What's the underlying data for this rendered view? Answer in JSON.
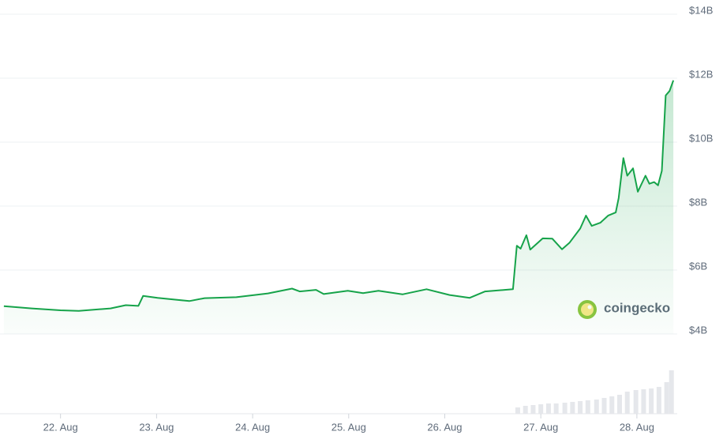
{
  "chart_data": {
    "type": "line",
    "watermark": "coingecko",
    "x": [
      21.41,
      21.7,
      22.0,
      22.19,
      22.52,
      22.68,
      22.81,
      22.86,
      23.01,
      23.34,
      23.5,
      23.83,
      24.16,
      24.41,
      24.49,
      24.66,
      24.74,
      24.99,
      25.15,
      25.31,
      25.56,
      25.81,
      26.05,
      26.26,
      26.42,
      26.71,
      26.75,
      26.79,
      26.85,
      26.89,
      27.02,
      27.12,
      27.22,
      27.3,
      27.41,
      27.47,
      27.53,
      27.62,
      27.7,
      27.78,
      27.81,
      27.86,
      27.9,
      27.96,
      28.01,
      28.09,
      28.13,
      28.18,
      28.22,
      28.26,
      28.3,
      28.34,
      28.38
    ],
    "series": [
      {
        "color": "#16a34a",
        "values": [
          4.87,
          4.8,
          4.74,
          4.72,
          4.8,
          4.9,
          4.88,
          5.19,
          5.13,
          5.03,
          5.12,
          5.15,
          5.27,
          5.42,
          5.33,
          5.38,
          5.25,
          5.35,
          5.28,
          5.35,
          5.24,
          5.4,
          5.22,
          5.13,
          5.33,
          5.4,
          6.76,
          6.67,
          7.09,
          6.64,
          6.99,
          6.98,
          6.65,
          6.86,
          7.3,
          7.7,
          7.38,
          7.48,
          7.7,
          7.8,
          8.25,
          9.5,
          8.95,
          9.18,
          8.45,
          8.95,
          8.7,
          8.75,
          8.65,
          9.1,
          11.46,
          11.6,
          11.93
        ]
      }
    ],
    "volume": {
      "color": "#e5e7eb",
      "x": [
        26.76,
        26.84,
        26.92,
        27.0,
        27.08,
        27.16,
        27.25,
        27.33,
        27.41,
        27.49,
        27.58,
        27.66,
        27.74,
        27.82,
        27.9,
        27.99,
        28.07,
        28.15,
        28.23,
        28.31,
        28.36
      ],
      "values": [
        8,
        10,
        11,
        12,
        13,
        13,
        14,
        15,
        16,
        17,
        18,
        20,
        22,
        24,
        28,
        30,
        31,
        32,
        34,
        40,
        55
      ],
      "ylim": [
        0,
        100
      ]
    },
    "xlim": [
      21.37,
      28.42
    ],
    "xticks": [
      {
        "value": 22,
        "label": "22. Aug"
      },
      {
        "value": 23,
        "label": "23. Aug"
      },
      {
        "value": 24,
        "label": "24. Aug"
      },
      {
        "value": 25,
        "label": "25. Aug"
      },
      {
        "value": 26,
        "label": "26. Aug"
      },
      {
        "value": 27,
        "label": "27. Aug"
      },
      {
        "value": 28,
        "label": "28. Aug"
      }
    ],
    "ylim": [
      4,
      14
    ],
    "yticks": [
      {
        "value": 4,
        "label": "$4B"
      },
      {
        "value": 6,
        "label": "$6B"
      },
      {
        "value": 8,
        "label": "$8B"
      },
      {
        "value": 10,
        "label": "$10B"
      },
      {
        "value": 12,
        "label": "$12B"
      },
      {
        "value": 14,
        "label": "$14B"
      }
    ],
    "grid": true
  }
}
